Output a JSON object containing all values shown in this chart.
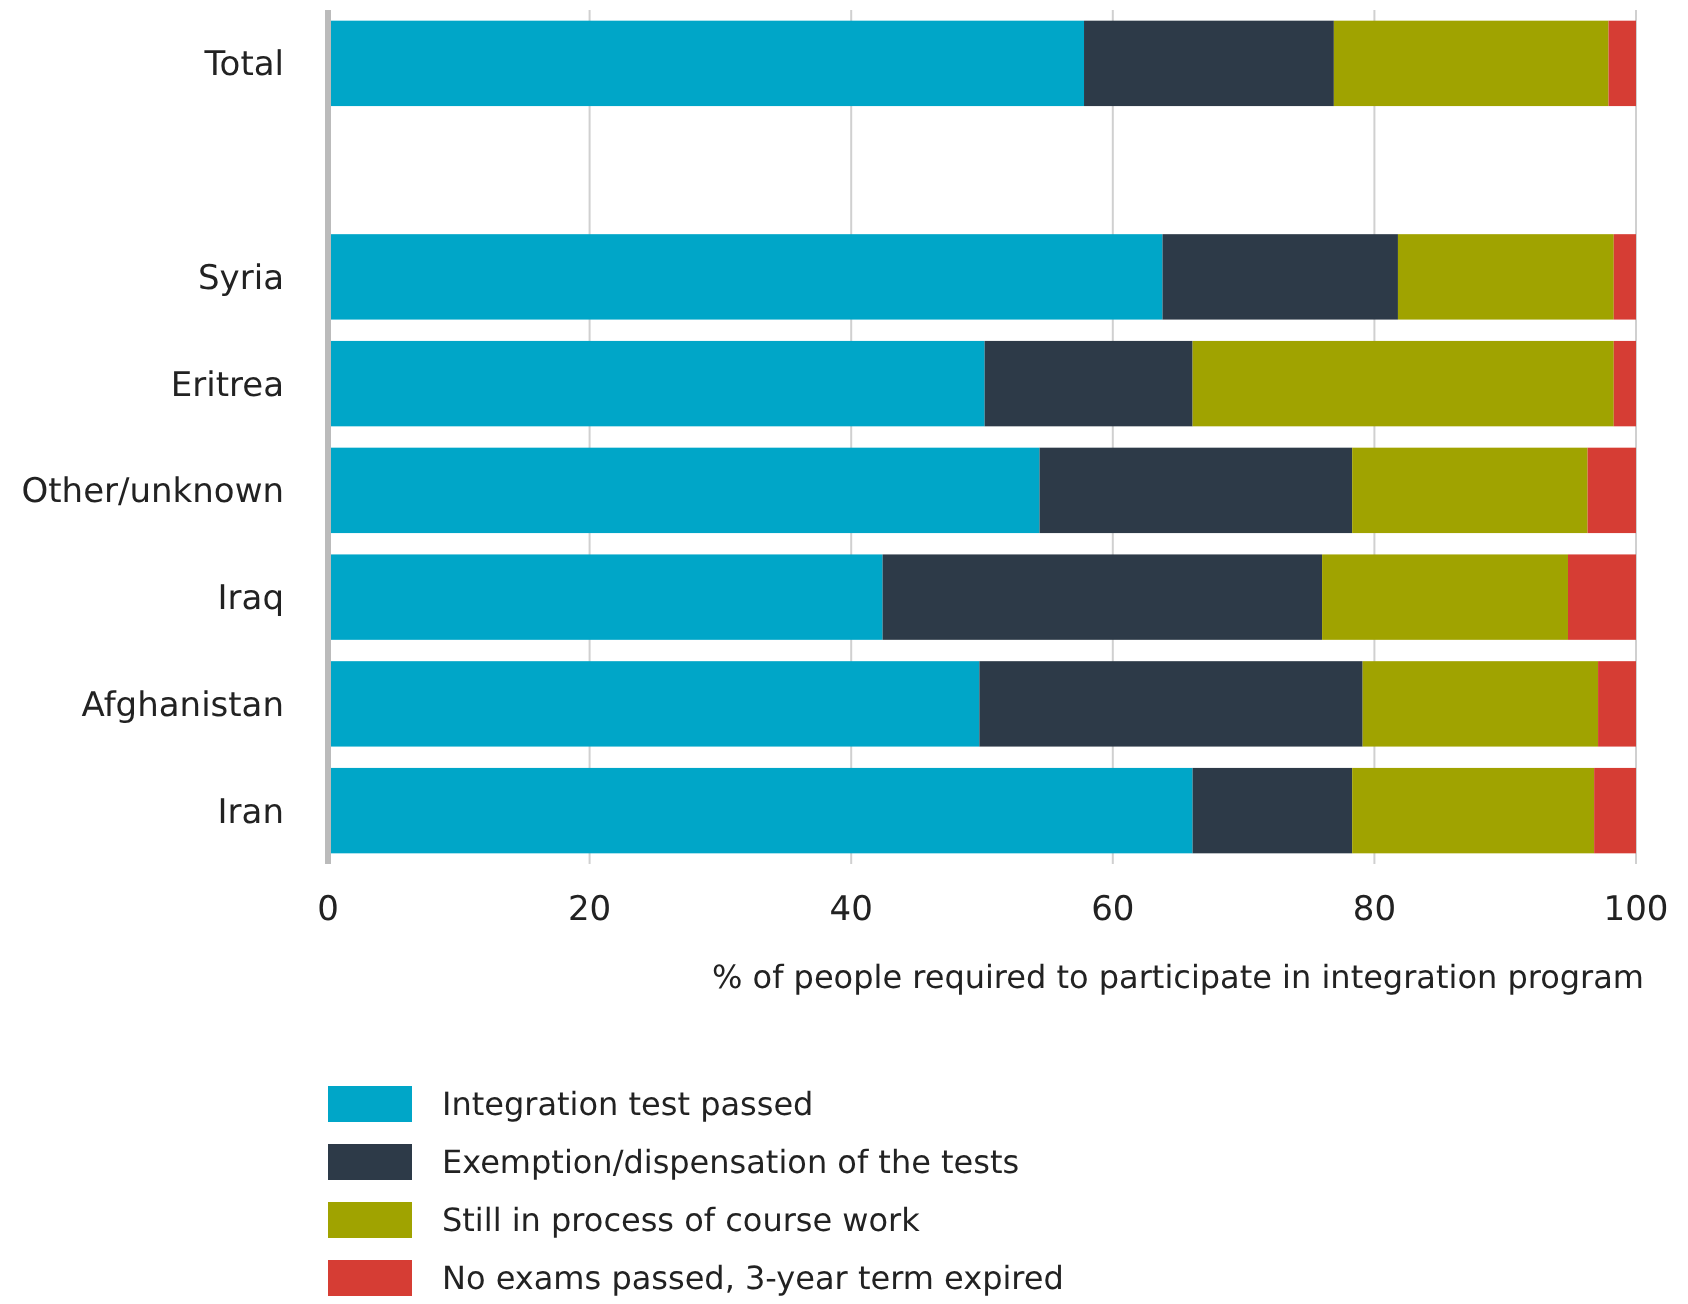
{
  "chart_data": {
    "type": "bar",
    "orientation": "horizontal",
    "stacked": true,
    "xlabel": "% of people required to participate in integration program",
    "categories": [
      "Total",
      null,
      "Syria",
      "Eritrea",
      "Other/unknown",
      "Iraq",
      "Afghanistan",
      "Iran"
    ],
    "series": [
      {
        "name": "Integration test passed",
        "color": "#00a6c8",
        "values": [
          57.8,
          null,
          63.8,
          50.2,
          54.4,
          42.4,
          49.8,
          66.1
        ]
      },
      {
        "name": "Exemption/dispensation of the tests",
        "color": "#2d3a48",
        "values": [
          19.1,
          null,
          18,
          15.9,
          23.9,
          33.6,
          29.3,
          12.2
        ]
      },
      {
        "name": "Still in process of course work",
        "color": "#a0a300",
        "values": [
          21,
          null,
          16.5,
          32.2,
          18,
          18.8,
          18,
          18.5
        ]
      },
      {
        "name": "No exams passed, 3-year term expired",
        "color": "#d63d34",
        "values": [
          2.1,
          null,
          1.7,
          1.7,
          3.7,
          5.2,
          2.9,
          3.2
        ]
      }
    ],
    "xlim": [
      0,
      100
    ],
    "xticks": [
      0,
      20,
      40,
      60,
      80,
      100
    ],
    "grid": "x",
    "legend": "bottom"
  }
}
